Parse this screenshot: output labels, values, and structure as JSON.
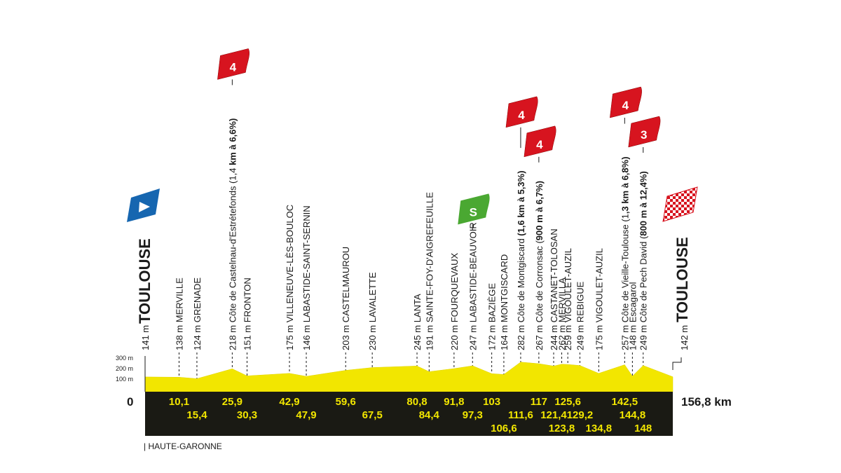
{
  "chart_data": {
    "type": "area",
    "distance_max": 156.8,
    "elevation_ticks": [
      "300 m",
      "200 m",
      "100 m"
    ],
    "ylim": [
      0,
      300
    ],
    "start_label": "0",
    "end_label": "156,8 km",
    "region": "| HAUTE-GARONNE",
    "start_city": {
      "alt": "141 m",
      "name": "TOULOUSE"
    },
    "finish_city": {
      "alt": "142 m",
      "name": "TOULOUSE"
    },
    "waypoints": [
      {
        "km": 0,
        "alt": 141
      },
      {
        "km": 10.1,
        "alt": 138,
        "km_label": "10,1",
        "row": 1,
        "label": "138 m MERVILLE"
      },
      {
        "km": 15.4,
        "alt": 124,
        "km_label": "15,4",
        "row": 2,
        "label": "124 m GRENADE"
      },
      {
        "km": 25.9,
        "alt": 218,
        "km_label": "25,9",
        "row": 1,
        "label": "218 m Côte de Castelnau-d'Estrétefonds (1,4 km à 6,6%)",
        "climb": "4",
        "bold_from": 44
      },
      {
        "km": 30.3,
        "alt": 151,
        "km_label": "30,3",
        "row": 2,
        "label": "151 m FRONTON"
      },
      {
        "km": 42.9,
        "alt": 175,
        "km_label": "42,9",
        "row": 1,
        "label": "175 m VILLENEUVE-LÈS-BOULOC"
      },
      {
        "km": 47.9,
        "alt": 146,
        "km_label": "47,9",
        "row": 2,
        "label": "146 m LABASTIDE-SAINT-SERNIN"
      },
      {
        "km": 59.6,
        "alt": 203,
        "km_label": "59,6",
        "row": 1,
        "label": "203 m CASTELMAUROU"
      },
      {
        "km": 67.5,
        "alt": 230,
        "km_label": "67,5",
        "row": 2,
        "label": "230 m LAVALETTE"
      },
      {
        "km": 80.8,
        "alt": 245,
        "km_label": "80,8",
        "row": 1,
        "label": "245 m LANTA"
      },
      {
        "km": 84.4,
        "alt": 191,
        "km_label": "84,4",
        "row": 2,
        "label": "191 m SAINTE-FOY-D'AIGREFEUILLE"
      },
      {
        "km": 91.8,
        "alt": 220,
        "km_label": "91,8",
        "row": 1,
        "label": "220 m FOURQUEVAUX"
      },
      {
        "km": 97.3,
        "alt": 247,
        "km_label": "97,3",
        "row": 2,
        "label": "247 m LABASTIDE-BEAUVOIR",
        "sprint": "S"
      },
      {
        "km": 103,
        "alt": 172,
        "km_label": "103",
        "row": 1,
        "label": "172 m BAZIÈGE"
      },
      {
        "km": 106.6,
        "alt": 164,
        "km_label": "106,6",
        "row": 3,
        "label": "164 m MONTGISCARD"
      },
      {
        "km": 111.6,
        "alt": 282,
        "km_label": "111,6",
        "row": 2,
        "label": "282 m Côte de Montgiscard (1,6 km à 5,3%)",
        "climb": "4",
        "bold_from": 26
      },
      {
        "km": 117,
        "alt": 267,
        "km_label": "117",
        "row": 1,
        "label": "267 m Côte de Corronsac (900 m à 6,7%)",
        "climb": "4",
        "bold_from": 25
      },
      {
        "km": 121.4,
        "alt": 244,
        "km_label": "121,4",
        "row": 2,
        "label": "244 m CASTANET-TOLOSAN"
      },
      {
        "km": 123.8,
        "alt": 262,
        "km_label": "123,8",
        "row": 3,
        "label": "262 m MERVILLA"
      },
      {
        "km": 125.6,
        "alt": 259,
        "km_label": "125,6",
        "row": 1,
        "label": "259 m VIGOULET-AUZIL"
      },
      {
        "km": 129.2,
        "alt": 249,
        "km_label": "129,2",
        "row": 2,
        "label": "249 m REBIGUE"
      },
      {
        "km": 134.8,
        "alt": 175,
        "km_label": "134,8",
        "row": 3,
        "label": "175 m VIGOULET-AUZIL"
      },
      {
        "km": 142.5,
        "alt": 257,
        "km_label": "142,5",
        "row": 1,
        "label": "257 m Côte de Vieille-Toulouse (1,3 km à 6,8%)",
        "climb": "4",
        "bold_from": 33
      },
      {
        "km": 144.8,
        "alt": 148,
        "km_label": "144,8",
        "row": 2,
        "label": "148 m Escagarol"
      },
      {
        "km": 148,
        "alt": 249,
        "km_label": "148",
        "row": 3,
        "label": "249 m Côte de Pech David (800 m à 12,4%)",
        "climb": "3",
        "bold_from": 26
      },
      {
        "km": 156.8,
        "alt": 142
      }
    ],
    "colors": {
      "profile": "#f2e600",
      "base": "#1a1a14",
      "climb_cat": "#d7141f",
      "sprint": "#4aa832",
      "start_flag": "#1666b0"
    }
  }
}
